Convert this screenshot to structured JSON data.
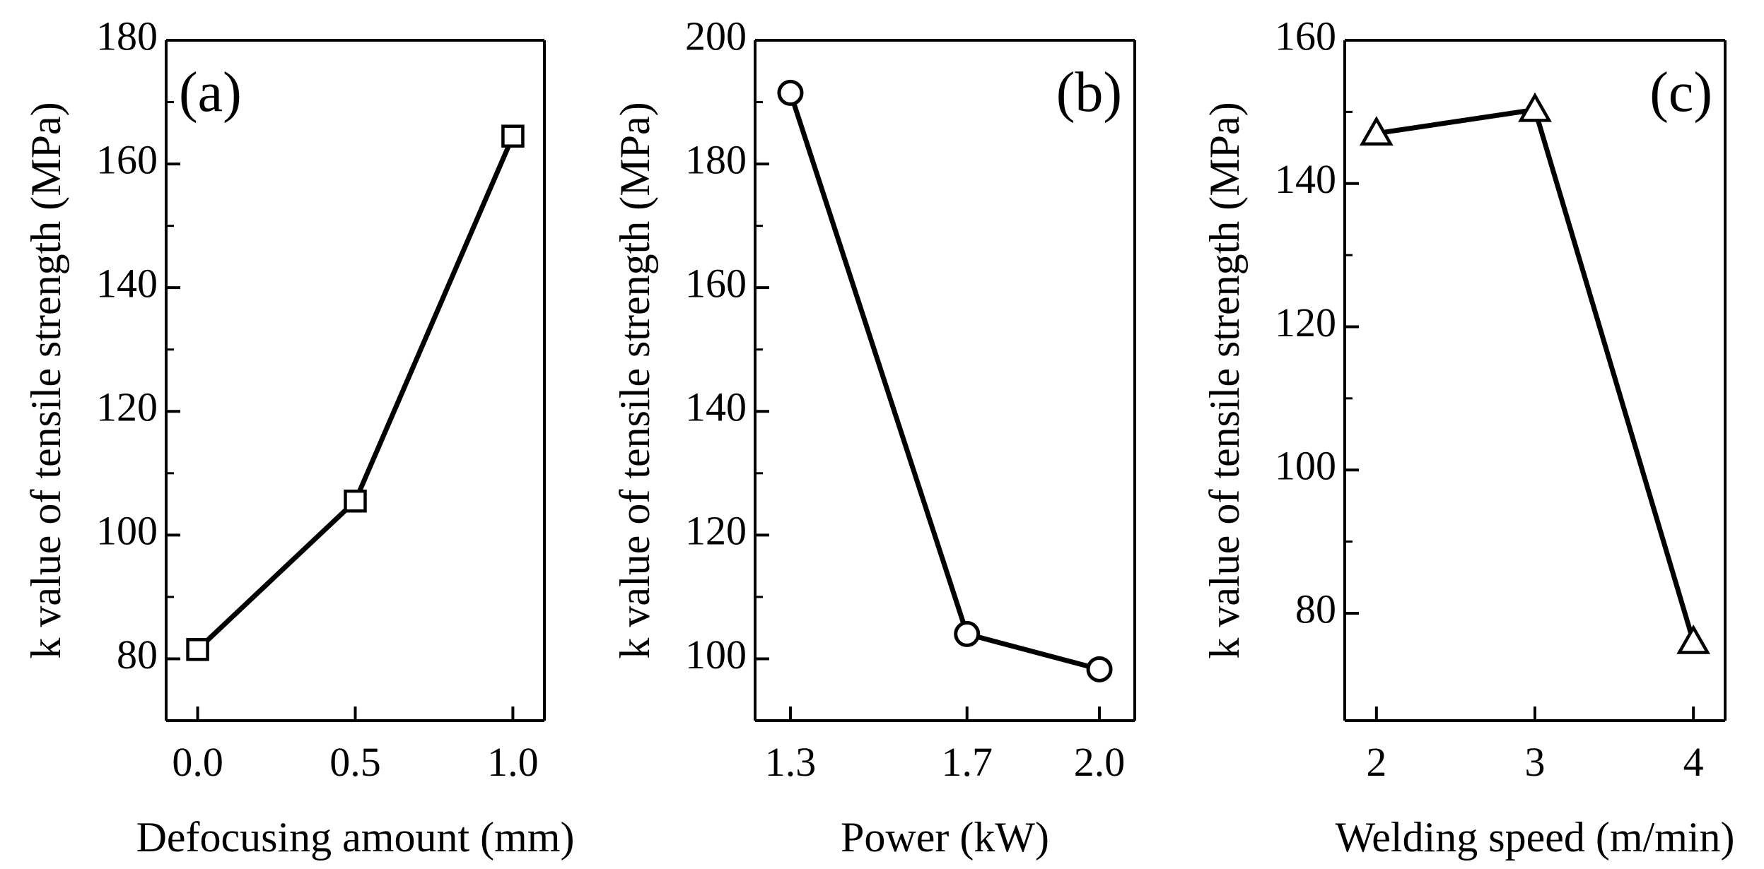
{
  "figure_colors": {
    "line": "#000000",
    "marker_fill": "#ffffff",
    "background": "#ffffff"
  },
  "chart_data": [
    {
      "type": "line",
      "panel_label": "(a)",
      "title": "",
      "xlabel": "Defocusing amount (mm)",
      "ylabel": "k value of tensile strength (MPa)",
      "marker": "square",
      "x": [
        0.0,
        0.5,
        1.0
      ],
      "x_tick_values": [
        0.0,
        0.5,
        1.0
      ],
      "x_tick_labels": [
        "0.0",
        "0.5",
        "1.0"
      ],
      "xlim": [
        -0.1,
        1.1
      ],
      "values": [
        81.5,
        105.5,
        164.5
      ],
      "y_tick_values": [
        80,
        100,
        120,
        140,
        160,
        180
      ],
      "y_tick_labels": [
        "80",
        "100",
        "120",
        "140",
        "160",
        "180"
      ],
      "ylim": [
        70,
        180
      ],
      "grid": false,
      "legend": "none"
    },
    {
      "type": "line",
      "panel_label": "(b)",
      "title": "",
      "xlabel": "Power (kW)",
      "ylabel": "k value of tensile strength (MPa)",
      "marker": "circle",
      "x": [
        1.3,
        1.7,
        2.0
      ],
      "x_tick_values": [
        1.3,
        1.7,
        2.0
      ],
      "x_tick_labels": [
        "1.3",
        "1.7",
        "2.0"
      ],
      "xlim": [
        1.22,
        2.08
      ],
      "values": [
        191.5,
        104,
        98.3
      ],
      "y_tick_values": [
        100,
        120,
        140,
        160,
        180,
        200
      ],
      "y_tick_labels": [
        "100",
        "120",
        "140",
        "160",
        "180",
        "200"
      ],
      "ylim": [
        90,
        200
      ],
      "grid": false,
      "legend": "none"
    },
    {
      "type": "line",
      "panel_label": "(c)",
      "title": "",
      "xlabel": "Welding speed (m/min)",
      "ylabel": "k value of tensile strength (MPa)",
      "marker": "triangle",
      "x": [
        2,
        3,
        4
      ],
      "x_tick_values": [
        2,
        3,
        4
      ],
      "x_tick_labels": [
        "2",
        "3",
        "4"
      ],
      "xlim": [
        1.8,
        4.2
      ],
      "values": [
        147,
        150.3,
        76
      ],
      "y_tick_values": [
        80,
        100,
        120,
        140,
        160
      ],
      "y_tick_labels": [
        "80",
        "100",
        "120",
        "140",
        "160"
      ],
      "ylim": [
        65,
        160
      ],
      "grid": false,
      "legend": "none"
    }
  ]
}
